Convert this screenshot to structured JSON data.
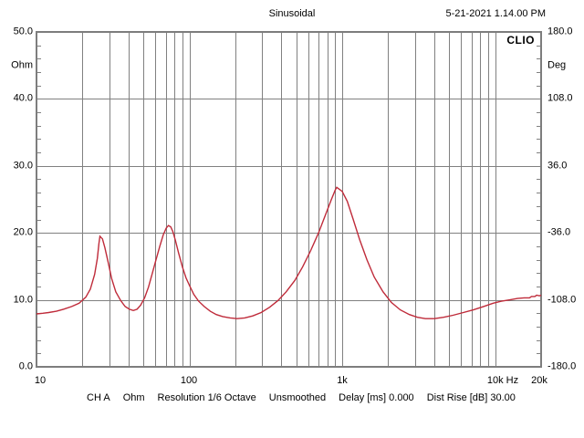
{
  "header": {
    "title": "Sinusoidal",
    "datetime": "5-21-2021 1.14.00 PM",
    "logo": "CLIO"
  },
  "axes": {
    "left": {
      "unit": "Ohm",
      "ticks": [
        "50.0",
        "40.0",
        "30.0",
        "20.0",
        "10.0",
        "0.0"
      ]
    },
    "right": {
      "unit": "Deg",
      "ticks": [
        "180.0",
        "108.0",
        "36.0",
        "-36.0",
        "-108.0",
        "-180.0"
      ]
    },
    "x": {
      "ticks": [
        "10",
        "100",
        "1k",
        "10k Hz",
        "20k"
      ]
    }
  },
  "status_bar": {
    "channel": "CH A",
    "unit": "Ohm",
    "resolution": "Resolution 1/6 Octave",
    "smoothing": "Unsmoothed",
    "delay": "Delay [ms] 0.000",
    "dist_rise": "Dist Rise [dB] 30.00"
  },
  "colors": {
    "curve": "#bf2b3a",
    "grid": "#808080",
    "frame": "#7d7d7d"
  },
  "chart_data": {
    "type": "line",
    "title": "Sinusoidal",
    "x_scale": "log",
    "x_range_hz": [
      10,
      20000
    ],
    "x_tick_values_hz": [
      10,
      100,
      1000,
      10000,
      20000
    ],
    "y_left": {
      "label": "Ohm",
      "range": [
        0,
        50
      ],
      "tick_step": 10,
      "minor_tick_step": 2
    },
    "y_right": {
      "label": "Deg",
      "range": [
        -180,
        180
      ],
      "ticks": [
        180,
        108,
        36,
        -36,
        -108,
        -180
      ]
    },
    "grid": "log-minor-verticals and major horizontals",
    "legend_position": "none",
    "series": [
      {
        "name": "CH A Impedance",
        "x_unit": "Hz",
        "y_unit": "Ohm",
        "peaks": [
          {
            "hz": 26,
            "ohm": 19.5
          },
          {
            "hz": 73,
            "ohm": 21.1
          },
          {
            "hz": 920,
            "ohm": 26.8
          }
        ],
        "points": [
          [
            10,
            7.9
          ],
          [
            11,
            8.0
          ],
          [
            12,
            8.1
          ],
          [
            13.5,
            8.3
          ],
          [
            15,
            8.6
          ],
          [
            17,
            9.0
          ],
          [
            19,
            9.5
          ],
          [
            21,
            10.4
          ],
          [
            22.5,
            11.6
          ],
          [
            24,
            13.8
          ],
          [
            25,
            16.2
          ],
          [
            25.6,
            18.4
          ],
          [
            26,
            19.5
          ],
          [
            27,
            19.1
          ],
          [
            28,
            17.8
          ],
          [
            29.5,
            15.5
          ],
          [
            31,
            13.2
          ],
          [
            33,
            11.2
          ],
          [
            35.5,
            9.9
          ],
          [
            38,
            9.0
          ],
          [
            40.5,
            8.6
          ],
          [
            43,
            8.4
          ],
          [
            45.5,
            8.6
          ],
          [
            48,
            9.2
          ],
          [
            51,
            10.3
          ],
          [
            54,
            11.9
          ],
          [
            57,
            13.8
          ],
          [
            60.5,
            16.0
          ],
          [
            64,
            18.0
          ],
          [
            67.5,
            19.7
          ],
          [
            70.5,
            20.7
          ],
          [
            73,
            21.1
          ],
          [
            75.5,
            20.9
          ],
          [
            78,
            20.2
          ],
          [
            81,
            18.9
          ],
          [
            85,
            17.0
          ],
          [
            90,
            14.9
          ],
          [
            95,
            13.3
          ],
          [
            100,
            12.2
          ],
          [
            107,
            10.8
          ],
          [
            115,
            9.8
          ],
          [
            125,
            9.0
          ],
          [
            137,
            8.3
          ],
          [
            150,
            7.8
          ],
          [
            165,
            7.5
          ],
          [
            185,
            7.3
          ],
          [
            205,
            7.2
          ],
          [
            230,
            7.3
          ],
          [
            260,
            7.6
          ],
          [
            295,
            8.1
          ],
          [
            335,
            8.9
          ],
          [
            380,
            9.9
          ],
          [
            430,
            11.2
          ],
          [
            490,
            12.9
          ],
          [
            550,
            14.9
          ],
          [
            620,
            17.3
          ],
          [
            700,
            20.0
          ],
          [
            780,
            22.8
          ],
          [
            850,
            25.0
          ],
          [
            900,
            26.4
          ],
          [
            920,
            26.8
          ],
          [
            1000,
            26.2
          ],
          [
            1080,
            24.7
          ],
          [
            1180,
            22.0
          ],
          [
            1300,
            19.0
          ],
          [
            1450,
            16.0
          ],
          [
            1620,
            13.4
          ],
          [
            1850,
            11.2
          ],
          [
            2100,
            9.6
          ],
          [
            2400,
            8.5
          ],
          [
            2750,
            7.8
          ],
          [
            3100,
            7.4
          ],
          [
            3500,
            7.2
          ],
          [
            4000,
            7.2
          ],
          [
            4600,
            7.4
          ],
          [
            5300,
            7.7
          ],
          [
            6200,
            8.1
          ],
          [
            7200,
            8.5
          ],
          [
            8400,
            9.0
          ],
          [
            9700,
            9.5
          ],
          [
            11000,
            9.8
          ],
          [
            12500,
            10.0
          ],
          [
            14000,
            10.2
          ],
          [
            15500,
            10.3
          ],
          [
            16800,
            10.3
          ],
          [
            17300,
            10.5
          ],
          [
            18200,
            10.5
          ],
          [
            18700,
            10.7
          ],
          [
            19500,
            10.6
          ],
          [
            20000,
            10.7
          ]
        ]
      }
    ]
  }
}
